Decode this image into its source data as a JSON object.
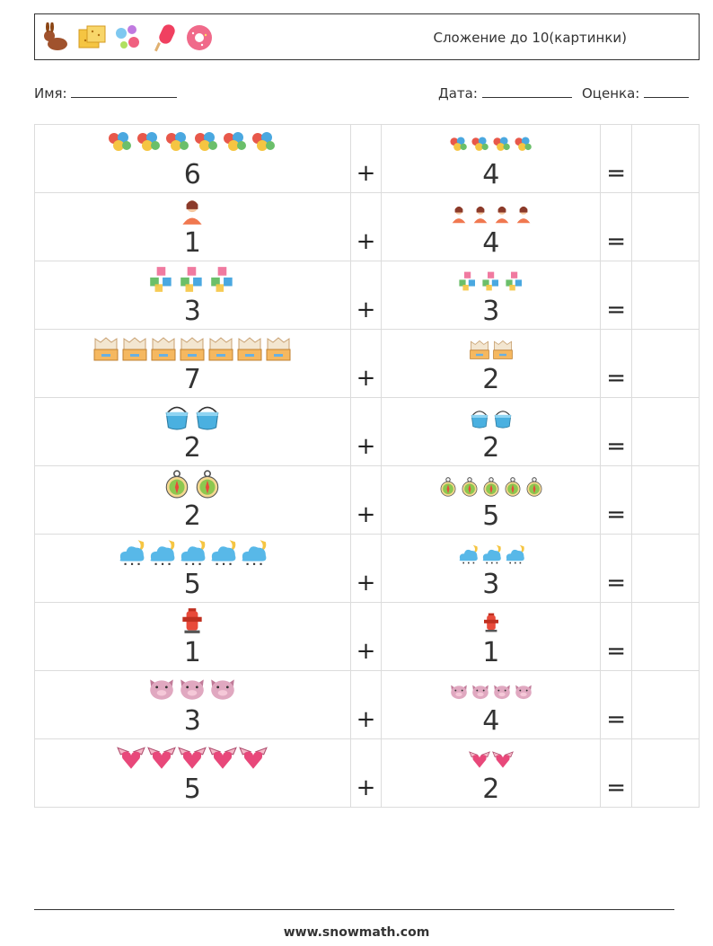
{
  "header": {
    "title": "Сложение до 10(картинки)",
    "icons": [
      "rabbit-icon",
      "cracker-icon",
      "candy-icon",
      "popsicle-icon",
      "donut-icon"
    ]
  },
  "info": {
    "name_label": "Имя:",
    "date_label": "Дата:",
    "grade_label": "Оценка:"
  },
  "operators": {
    "plus": "+",
    "equals": "="
  },
  "rows": [
    {
      "a": "6",
      "b": "4",
      "icon": "balloons-icon",
      "color": "#e8584a"
    },
    {
      "a": "1",
      "b": "4",
      "icon": "person-icon",
      "color": "#f07850"
    },
    {
      "a": "3",
      "b": "3",
      "icon": "toy-blocks-icon",
      "color": "#6bbf6a"
    },
    {
      "a": "7",
      "b": "2",
      "icon": "box-icon",
      "color": "#f5b860"
    },
    {
      "a": "2",
      "b": "2",
      "icon": "bucket-icon",
      "color": "#4ab0e0"
    },
    {
      "a": "2",
      "b": "5",
      "icon": "compass-icon",
      "color": "#8cc850"
    },
    {
      "a": "5",
      "b": "3",
      "icon": "night-cloud-icon",
      "color": "#58b8e8"
    },
    {
      "a": "1",
      "b": "1",
      "icon": "fire-hydrant-icon",
      "color": "#e84a3a"
    },
    {
      "a": "3",
      "b": "4",
      "icon": "pig-face-icon",
      "color": "#e0a8c0"
    },
    {
      "a": "5",
      "b": "2",
      "icon": "winged-heart-icon",
      "color": "#e8487a"
    }
  ],
  "footer": {
    "url": "www.snowmath.com"
  }
}
